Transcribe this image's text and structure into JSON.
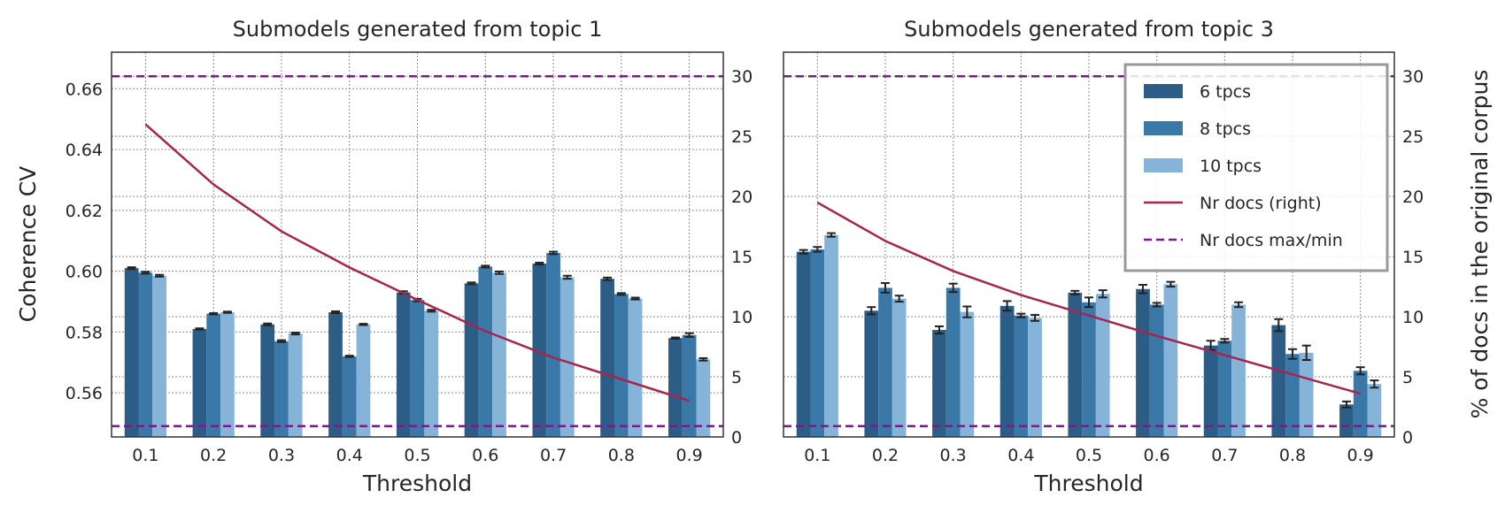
{
  "colors": {
    "tpcs6": "#2c5d86",
    "tpcs8": "#3a78a8",
    "tpcs10": "#86b4d8",
    "docs_line": "#a8234f",
    "maxmin_line": "#7b1a8a",
    "grid": "#8c8c8c",
    "axis": "#333333",
    "errorbar": "#222222"
  },
  "legend": {
    "items": [
      {
        "label": "6 tpcs",
        "kind": "bar",
        "color": "#2c5d86"
      },
      {
        "label": "8 tpcs",
        "kind": "bar",
        "color": "#3a78a8"
      },
      {
        "label": "10 tpcs",
        "kind": "bar",
        "color": "#86b4d8"
      },
      {
        "label": "Nr docs (right)",
        "kind": "line",
        "color": "#a8234f"
      },
      {
        "label": "Nr docs max/min",
        "kind": "dashed",
        "color": "#7b1a8a"
      }
    ],
    "placement": "upper-right of second panel"
  },
  "chart_data": [
    {
      "type": "bar",
      "title": "Submodels generated from topic 1",
      "xlabel": "Threshold",
      "ylabel": "Coherence CV",
      "y2label": "",
      "categories": [
        "0.1",
        "0.2",
        "0.3",
        "0.4",
        "0.5",
        "0.6",
        "0.7",
        "0.8",
        "0.9"
      ],
      "ylim": [
        0.5455,
        0.672
      ],
      "yticks": [
        "0.56",
        "0.58",
        "0.60",
        "0.62",
        "0.64",
        "0.66"
      ],
      "y2lim": [
        0,
        32
      ],
      "y2ticks": [
        "0",
        "5",
        "10",
        "15",
        "20",
        "25",
        "30"
      ],
      "grid": true,
      "series": [
        {
          "name": "6 tpcs",
          "values": [
            0.601,
            0.581,
            0.5825,
            0.5865,
            0.593,
            0.596,
            0.6025,
            0.5975,
            0.578
          ],
          "errors": [
            0.0003,
            0.0002,
            0.0003,
            0.0003,
            0.0004,
            0.0003,
            0.0003,
            0.0004,
            0.0002
          ]
        },
        {
          "name": "8 tpcs",
          "values": [
            0.5995,
            0.586,
            0.577,
            0.572,
            0.5905,
            0.6015,
            0.606,
            0.5925,
            0.579
          ],
          "errors": [
            0.0003,
            0.0002,
            0.0003,
            0.0002,
            0.0004,
            0.0003,
            0.0004,
            0.0003,
            0.0006
          ]
        },
        {
          "name": "10 tpcs",
          "values": [
            0.5985,
            0.5865,
            0.5795,
            0.5825,
            0.587,
            0.5995,
            0.598,
            0.591,
            0.571
          ],
          "errors": [
            0.0003,
            0.0002,
            0.0003,
            0.0002,
            0.0003,
            0.0004,
            0.0005,
            0.0003,
            0.0004
          ]
        }
      ],
      "docs_line": {
        "name": "Nr docs (right)",
        "values": [
          26.0,
          21.0,
          17.1,
          14.1,
          11.4,
          8.8,
          6.6,
          4.8,
          3.0
        ]
      },
      "maxmin_lines": {
        "name": "Nr docs max/min",
        "values": [
          30.0,
          0.9
        ]
      }
    },
    {
      "type": "bar",
      "title": "Submodels generated from topic 3",
      "xlabel": "Threshold",
      "ylabel": "",
      "y2label": "% of docs in the original corpus",
      "categories": [
        "0.1",
        "0.2",
        "0.3",
        "0.4",
        "0.5",
        "0.6",
        "0.7",
        "0.8",
        "0.9"
      ],
      "ylim": [
        0,
        32
      ],
      "y2lim": [
        0,
        32
      ],
      "y2ticks": [
        "0",
        "5",
        "10",
        "15",
        "20",
        "25",
        "30"
      ],
      "grid": true,
      "series": [
        {
          "name": "6 tpcs",
          "values": [
            15.4,
            10.5,
            8.9,
            10.9,
            12.0,
            12.3,
            7.6,
            9.3,
            2.7
          ],
          "errors": [
            0.15,
            0.3,
            0.3,
            0.4,
            0.15,
            0.35,
            0.4,
            0.5,
            0.25
          ]
        },
        {
          "name": "8 tpcs",
          "values": [
            15.6,
            12.4,
            12.4,
            10.1,
            11.2,
            11.0,
            8.0,
            6.9,
            5.5
          ],
          "errors": [
            0.2,
            0.4,
            0.35,
            0.15,
            0.4,
            0.15,
            0.15,
            0.4,
            0.3
          ]
        },
        {
          "name": "10 tpcs",
          "values": [
            16.8,
            11.5,
            10.4,
            9.9,
            11.9,
            12.7,
            11.0,
            7.0,
            4.4
          ],
          "errors": [
            0.15,
            0.25,
            0.45,
            0.25,
            0.3,
            0.2,
            0.2,
            0.6,
            0.3
          ]
        }
      ],
      "docs_line": {
        "name": "Nr docs (right)",
        "values": [
          19.5,
          16.3,
          13.8,
          11.8,
          10.1,
          8.4,
          6.8,
          5.2,
          3.6
        ]
      },
      "maxmin_lines": {
        "name": "Nr docs max/min",
        "values": [
          30.0,
          0.9
        ]
      }
    }
  ]
}
